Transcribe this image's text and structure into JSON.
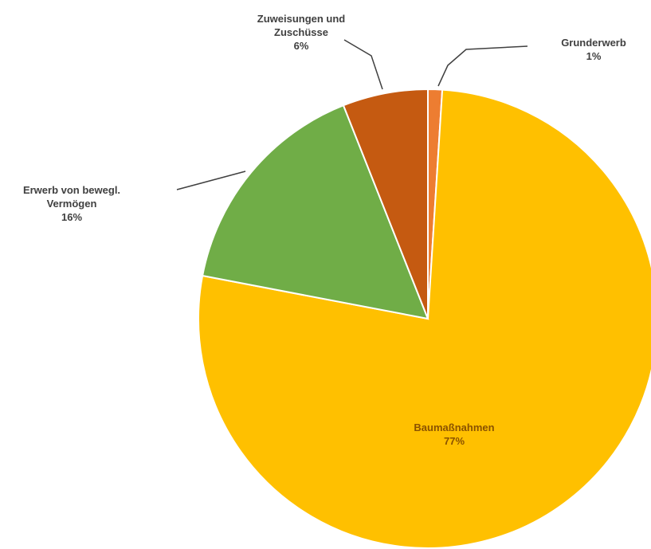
{
  "chart_data": {
    "type": "pie",
    "categories": [
      "Grunderwerb",
      "Baumaßnahmen",
      "Erwerb von bewegl. Vermögen",
      "Zuweisungen und Zuschüsse"
    ],
    "values": [
      1,
      77,
      16,
      6
    ],
    "value_labels": [
      "1%",
      "77%",
      "16%",
      "6%"
    ],
    "colors": [
      "#ed7d31",
      "#ffc000",
      "#70ad47",
      "#c55a11"
    ]
  }
}
